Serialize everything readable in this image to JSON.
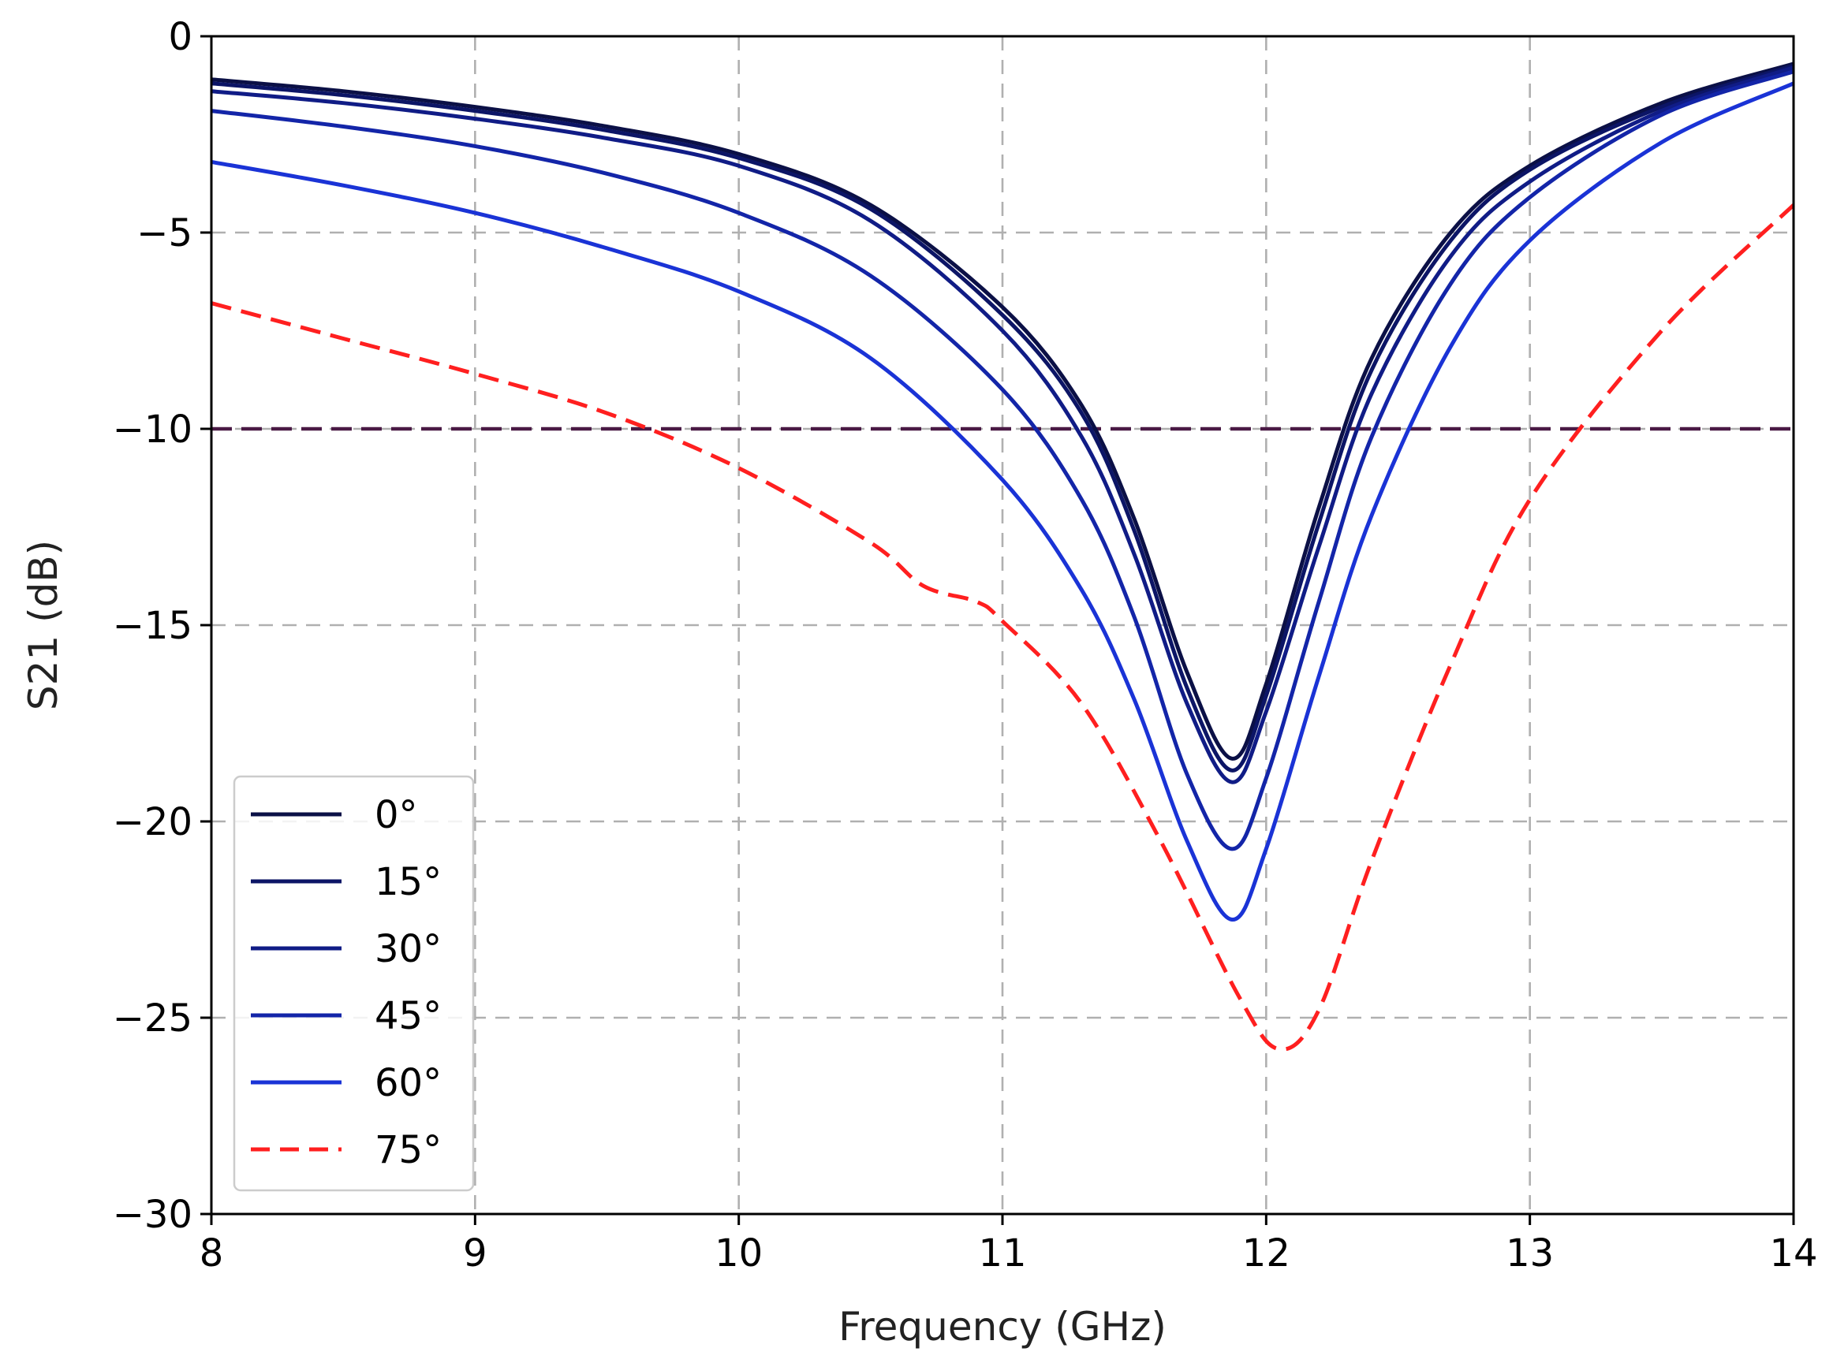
{
  "chart_data": {
    "type": "line",
    "title": "",
    "xlabel": "Frequency (GHz)",
    "ylabel": "S21 (dB)",
    "xlim": [
      8,
      14
    ],
    "ylim": [
      -30,
      0
    ],
    "xticks": [
      8,
      9,
      10,
      11,
      12,
      13,
      14
    ],
    "yticks": [
      0,
      -5,
      -10,
      -15,
      -20,
      -25,
      -30
    ],
    "xtick_labels": [
      "8",
      "9",
      "10",
      "11",
      "12",
      "13",
      "14"
    ],
    "ytick_labels": [
      "0",
      "−5",
      "−10",
      "−15",
      "−20",
      "−25",
      "−30"
    ],
    "grid": true,
    "legend_position": "lower-left",
    "threshold": {
      "y": -10,
      "color": "#4a1a45",
      "style": "dashed"
    },
    "series": [
      {
        "name": "0°",
        "color": "#0b1046",
        "style": "solid",
        "x": [
          8,
          8.5,
          9,
          9.5,
          10,
          10.5,
          11,
          11.3,
          11.5,
          11.7,
          11.87,
          12,
          12.2,
          12.4,
          12.7,
          13,
          13.5,
          14
        ],
        "y": [
          -1.1,
          -1.4,
          -1.8,
          -2.3,
          -3.0,
          -4.3,
          -6.9,
          -9.4,
          -12.3,
          -16.2,
          -18.4,
          -16.5,
          -12.0,
          -8.2,
          -5.0,
          -3.3,
          -1.7,
          -0.7
        ]
      },
      {
        "name": "15°",
        "color": "#0c1566",
        "style": "solid",
        "x": [
          8,
          8.5,
          9,
          9.5,
          10,
          10.5,
          11,
          11.3,
          11.5,
          11.7,
          11.87,
          12,
          12.2,
          12.4,
          12.7,
          13,
          13.5,
          14
        ],
        "y": [
          -1.2,
          -1.5,
          -1.9,
          -2.4,
          -3.1,
          -4.4,
          -7.1,
          -9.6,
          -12.6,
          -16.6,
          -18.7,
          -16.8,
          -12.4,
          -8.5,
          -5.2,
          -3.4,
          -1.8,
          -0.75
        ]
      },
      {
        "name": "30°",
        "color": "#101c86",
        "style": "solid",
        "x": [
          8,
          8.5,
          9,
          9.5,
          10,
          10.5,
          11,
          11.3,
          11.5,
          11.7,
          11.87,
          12,
          12.2,
          12.4,
          12.7,
          13,
          13.5,
          14
        ],
        "y": [
          -1.4,
          -1.7,
          -2.1,
          -2.6,
          -3.3,
          -4.7,
          -7.5,
          -10.2,
          -13.2,
          -17.0,
          -19.0,
          -17.2,
          -13.0,
          -9.1,
          -5.6,
          -3.7,
          -1.9,
          -0.8
        ]
      },
      {
        "name": "45°",
        "color": "#1325a8",
        "style": "solid",
        "x": [
          8,
          8.5,
          9,
          9.5,
          10,
          10.5,
          11,
          11.3,
          11.5,
          11.7,
          11.87,
          12,
          12.2,
          12.4,
          12.7,
          13,
          13.5,
          14
        ],
        "y": [
          -1.9,
          -2.3,
          -2.8,
          -3.5,
          -4.5,
          -6.1,
          -9.0,
          -11.8,
          -14.8,
          -18.8,
          -20.7,
          -18.9,
          -14.4,
          -10.2,
          -6.3,
          -4.1,
          -2.0,
          -0.9
        ]
      },
      {
        "name": "60°",
        "color": "#1a33d6",
        "style": "solid",
        "x": [
          8,
          8.5,
          9,
          9.5,
          10,
          10.5,
          11,
          11.3,
          11.5,
          11.7,
          11.87,
          12,
          12.2,
          12.4,
          12.7,
          13,
          13.5,
          14
        ],
        "y": [
          -3.2,
          -3.8,
          -4.5,
          -5.4,
          -6.5,
          -8.2,
          -11.3,
          -14.1,
          -16.9,
          -20.5,
          -22.5,
          -20.7,
          -16.3,
          -12.2,
          -7.9,
          -5.2,
          -2.7,
          -1.2
        ]
      },
      {
        "name": "75°",
        "color": "#ff1f1f",
        "style": "dashed",
        "x": [
          8,
          8.5,
          9,
          9.5,
          10,
          10.5,
          10.7,
          10.9,
          11,
          11.3,
          11.6,
          11.9,
          12.05,
          12.2,
          12.4,
          12.7,
          13,
          13.5,
          14
        ],
        "y": [
          -6.8,
          -7.7,
          -8.6,
          -9.6,
          -11.0,
          -12.9,
          -14.0,
          -14.4,
          -14.9,
          -17.0,
          -20.5,
          -24.5,
          -25.8,
          -24.8,
          -21.0,
          -16.0,
          -11.8,
          -7.5,
          -4.3
        ]
      }
    ]
  }
}
